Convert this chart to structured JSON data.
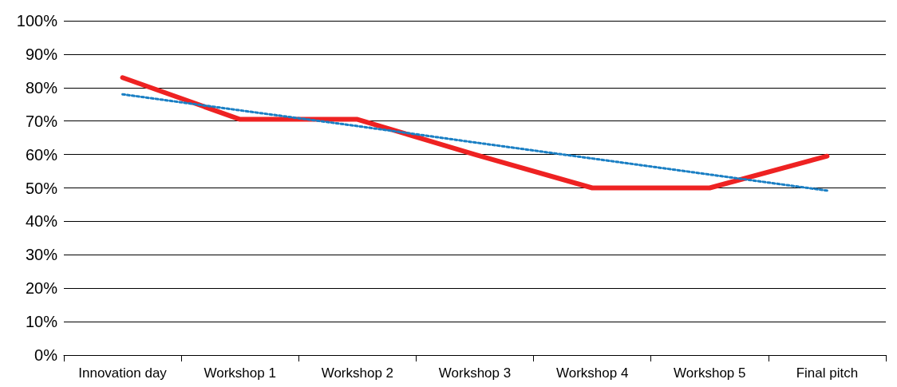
{
  "chart_data": {
    "type": "line",
    "categories": [
      "Innovation day",
      "Workshop 1",
      "Workshop 2",
      "Workshop 3",
      "Workshop 4",
      "Workshop 5",
      "Final pitch"
    ],
    "series": [
      {
        "color": "#ee2222",
        "values": [
          83,
          70.5,
          70.5,
          60,
          50,
          50,
          59.5
        ],
        "line_style": "solid"
      },
      {
        "color": "#1a7fc4",
        "values": [
          78,
          73.2,
          68.5,
          63.6,
          58.8,
          54,
          49.2
        ],
        "line_style": "dotted"
      }
    ],
    "ylim": [
      0,
      100
    ],
    "yticks": [
      {
        "value": 0,
        "label": "0%"
      },
      {
        "value": 10,
        "label": "10%"
      },
      {
        "value": 20,
        "label": "20%"
      },
      {
        "value": 30,
        "label": "30%"
      },
      {
        "value": 40,
        "label": "40%"
      },
      {
        "value": 50,
        "label": "50%"
      },
      {
        "value": 60,
        "label": "60%"
      },
      {
        "value": 70,
        "label": "70%"
      },
      {
        "value": 80,
        "label": "80%"
      },
      {
        "value": 90,
        "label": "90%"
      },
      {
        "value": 100,
        "label": "100%"
      }
    ],
    "grid": "y",
    "marker": "none"
  }
}
